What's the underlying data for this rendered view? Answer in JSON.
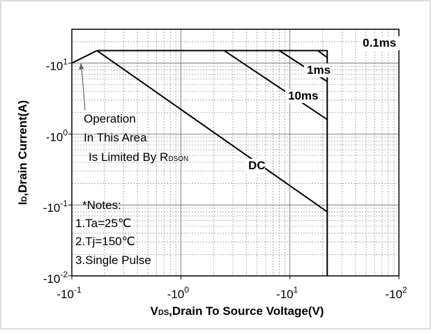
{
  "chart_data": {
    "type": "line",
    "x_label": [
      "V",
      "DS",
      ",Drain To Source Voltage(V)"
    ],
    "y_label": [
      "I",
      "D",
      ",Drain Current(A)"
    ],
    "log_x": true,
    "log_y": true,
    "grid": true,
    "color": "#000000",
    "xlim": [
      0.1,
      100
    ],
    "xticks": [
      {
        "value": 0.1,
        "label": "-10",
        "exponent": "-1"
      },
      {
        "value": 1,
        "label": "-10",
        "exponent": "0"
      },
      {
        "value": 10,
        "label": "-10",
        "exponent": "1"
      },
      {
        "value": 100,
        "label": "-10",
        "exponent": "2"
      }
    ],
    "ylim": [
      0.01,
      30
    ],
    "yticks": [
      {
        "value": 0.01,
        "label": "-10",
        "exponent": "-2"
      },
      {
        "value": 0.1,
        "label": "-10",
        "exponent": "-1"
      },
      {
        "value": 1,
        "label": "-10",
        "exponent": "0"
      },
      {
        "value": 10,
        "label": "-10",
        "exponent": "1"
      }
    ],
    "series": [
      {
        "x": [
          0.1,
          0.17,
          22,
          22
        ],
        "values": [
          10,
          15,
          15,
          0.01
        ]
      },
      {
        "name": "DC",
        "x": [
          0.17,
          22
        ],
        "values": [
          15,
          0.08
        ]
      },
      {
        "name": "10ms",
        "x": [
          2.5,
          22
        ],
        "values": [
          15,
          1.6
        ]
      },
      {
        "name": "1ms",
        "x": [
          8,
          22
        ],
        "values": [
          15,
          5.5
        ]
      },
      {
        "name": "0.1ms",
        "x": [
          18,
          22
        ],
        "values": [
          15,
          12
        ]
      }
    ],
    "annotations": [
      "Operation",
      "In This Area",
      [
        "Is Limited By R",
        "DSON"
      ],
      "*Notes:",
      "1.Ta=25℃",
      "2.Tj=150℃",
      "3.Single Pulse"
    ]
  }
}
